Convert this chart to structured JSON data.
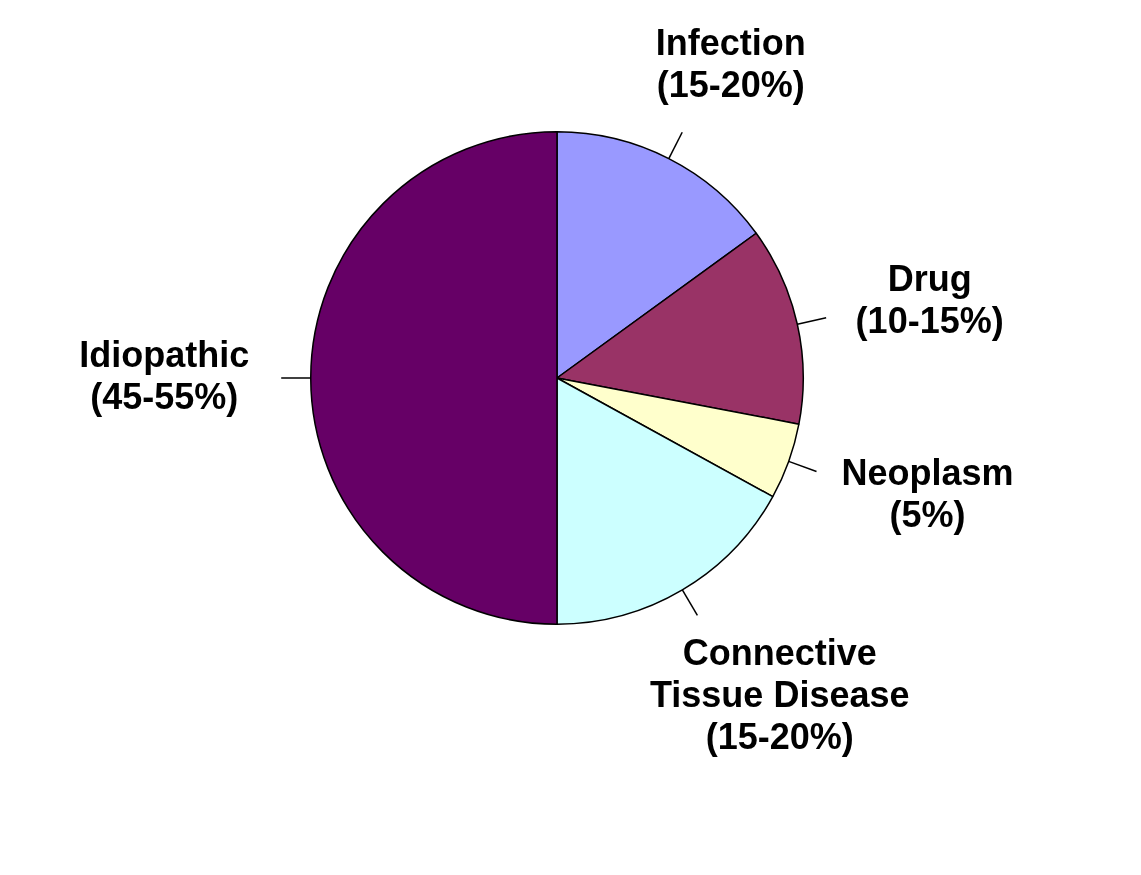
{
  "chart_data": {
    "type": "pie",
    "categories": [
      "Infection (15-20%)",
      "Drug (10-15%)",
      "Neoplasm (5%)",
      "Connective Tissue Disease (15-20%)",
      "Idiopathic (45-55%)"
    ],
    "values": [
      15,
      13,
      5,
      17,
      50
    ],
    "colors": [
      "#9999ff",
      "#993366",
      "#ffffcc",
      "#ccffff",
      "#660066"
    ],
    "legend": false
  }
}
